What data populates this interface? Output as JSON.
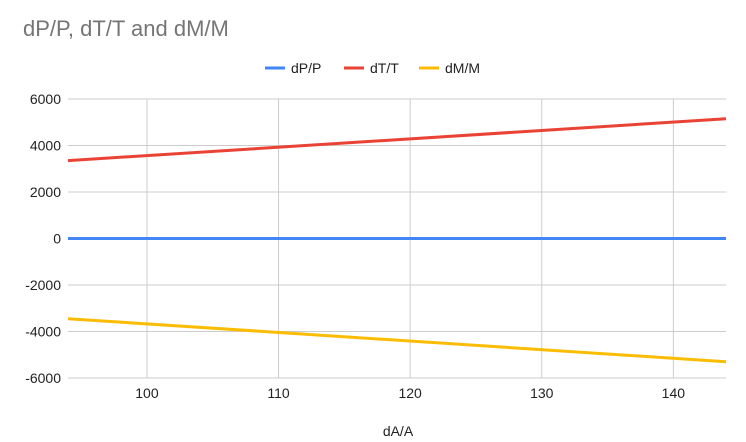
{
  "chart_data": {
    "type": "line",
    "title": "dP/P, dT/T and dM/M",
    "xlabel": "dA/A",
    "ylabel": "",
    "xlim": [
      94,
      144
    ],
    "ylim": [
      -6000,
      6000
    ],
    "x_ticks": [
      100,
      110,
      120,
      130,
      140
    ],
    "y_ticks": [
      -6000,
      -4000,
      -2000,
      0,
      2000,
      4000,
      6000
    ],
    "grid": true,
    "legend_position": "top",
    "x": [
      94,
      144
    ],
    "series": [
      {
        "name": "dP/P",
        "color": "#4285f4",
        "values": [
          0,
          0
        ]
      },
      {
        "name": "dT/T",
        "color": "#ea4335",
        "values": [
          3350,
          5150
        ]
      },
      {
        "name": "dM/M",
        "color": "#fbbc04",
        "values": [
          -3450,
          -5300
        ]
      }
    ]
  }
}
